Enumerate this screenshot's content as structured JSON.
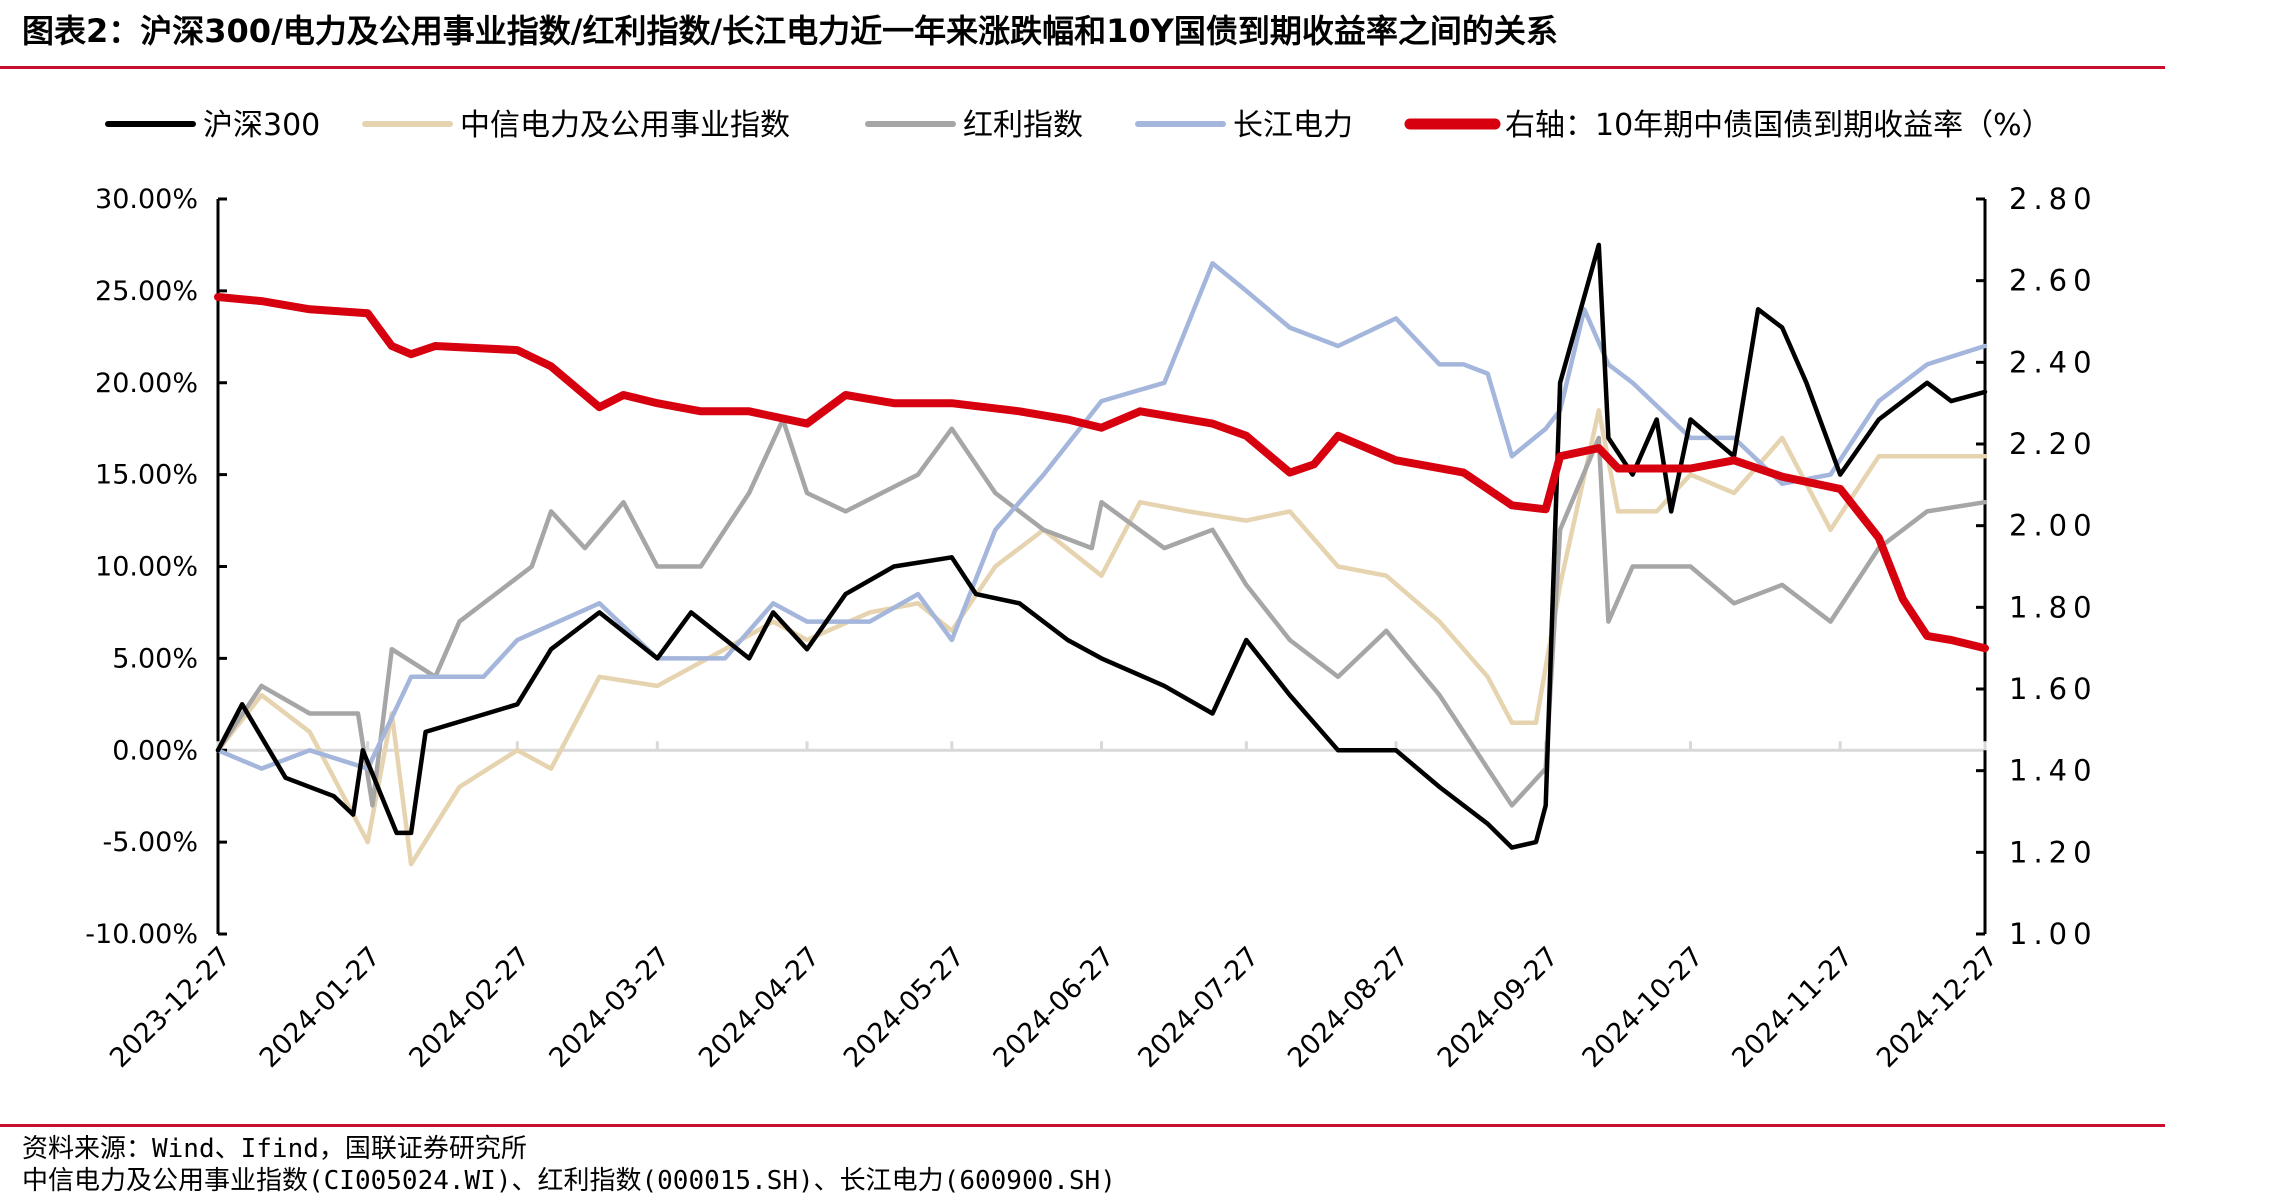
{
  "title": "图表2：沪深300/电力及公用事业指数/红利指数/长江电力近一年来涨跌幅和10Y国债到期收益率之间的关系",
  "source": "资料来源：Wind、Ifind，国联证券研究所",
  "note": "中信电力及公用事业指数(CI005024.WI)、红利指数(000015.SH)、长江电力(600900.SH)",
  "colors": {
    "accent_rule": "#c8102e"
  },
  "chart_data": {
    "type": "line",
    "legend_position": "top",
    "grid": false,
    "x_ticks": [
      "2023-12-27",
      "2024-01-27",
      "2024-02-27",
      "2024-03-27",
      "2024-04-27",
      "2024-05-27",
      "2024-06-27",
      "2024-07-27",
      "2024-08-27",
      "2024-09-27",
      "2024-10-27",
      "2024-11-27",
      "2024-12-27"
    ],
    "x_range": [
      "2023-12-27",
      "2024-12-27"
    ],
    "y_left": {
      "range": [
        -10,
        30
      ],
      "ticks": [
        "-10.00%",
        "-5.00%",
        "0.00%",
        "5.00%",
        "10.00%",
        "15.00%",
        "20.00%",
        "25.00%",
        "30.00%"
      ],
      "tick_values": [
        -10,
        -5,
        0,
        5,
        10,
        15,
        20,
        25,
        30
      ]
    },
    "y_right": {
      "range": [
        1.0,
        2.8
      ],
      "ticks": [
        "1.00",
        "1.20",
        "1.40",
        "1.60",
        "1.80",
        "2.00",
        "2.20",
        "2.40",
        "2.60",
        "2.80"
      ],
      "tick_values": [
        1.0,
        1.2,
        1.4,
        1.6,
        1.8,
        2.0,
        2.2,
        2.4,
        2.6,
        2.8
      ]
    },
    "series": [
      {
        "name": "沪深300",
        "axis": "left",
        "color": "#000000",
        "x": [
          "2023-12-27",
          "2024-01-01",
          "2024-01-10",
          "2024-01-20",
          "2024-01-24",
          "2024-01-26",
          "2024-02-02",
          "2024-02-05",
          "2024-02-08",
          "2024-02-27",
          "2024-03-05",
          "2024-03-15",
          "2024-03-27",
          "2024-04-03",
          "2024-04-15",
          "2024-04-20",
          "2024-04-27",
          "2024-05-05",
          "2024-05-15",
          "2024-05-27",
          "2024-06-01",
          "2024-06-10",
          "2024-06-20",
          "2024-06-27",
          "2024-07-10",
          "2024-07-20",
          "2024-07-27",
          "2024-08-05",
          "2024-08-15",
          "2024-08-27",
          "2024-09-05",
          "2024-09-15",
          "2024-09-20",
          "2024-09-25",
          "2024-09-27",
          "2024-09-30",
          "2024-10-08",
          "2024-10-10",
          "2024-10-15",
          "2024-10-20",
          "2024-10-23",
          "2024-10-27",
          "2024-11-05",
          "2024-11-10",
          "2024-11-15",
          "2024-11-20",
          "2024-11-27",
          "2024-12-05",
          "2024-12-15",
          "2024-12-20",
          "2024-12-27"
        ],
        "values": [
          0,
          2.5,
          -1.5,
          -2.5,
          -3.5,
          0,
          -4.5,
          -4.5,
          1,
          2.5,
          5.5,
          7.5,
          5,
          7.5,
          5,
          7.5,
          5.5,
          8.5,
          10,
          10.5,
          8.5,
          8,
          6,
          5,
          3.5,
          2,
          6,
          3,
          0,
          0,
          -2,
          -4,
          -5.3,
          -5,
          -3,
          20,
          27.5,
          17,
          15,
          18,
          13,
          18,
          16,
          24,
          23,
          20,
          15,
          18,
          20,
          19,
          19.5
        ]
      },
      {
        "name": "中信电力及公用事业指数",
        "axis": "left",
        "color": "#e6d3b0",
        "x": [
          "2023-12-27",
          "2024-01-05",
          "2024-01-15",
          "2024-01-27",
          "2024-02-01",
          "2024-02-05",
          "2024-02-15",
          "2024-02-27",
          "2024-03-05",
          "2024-03-15",
          "2024-03-27",
          "2024-04-10",
          "2024-04-20",
          "2024-04-27",
          "2024-05-10",
          "2024-05-20",
          "2024-05-27",
          "2024-06-05",
          "2024-06-15",
          "2024-06-27",
          "2024-07-05",
          "2024-07-15",
          "2024-07-27",
          "2024-08-05",
          "2024-08-15",
          "2024-08-25",
          "2024-09-05",
          "2024-09-15",
          "2024-09-20",
          "2024-09-25",
          "2024-09-30",
          "2024-10-08",
          "2024-10-12",
          "2024-10-20",
          "2024-10-27",
          "2024-11-05",
          "2024-11-15",
          "2024-11-25",
          "2024-12-05",
          "2024-12-15",
          "2024-12-27"
        ],
        "values": [
          0,
          3,
          1,
          -5,
          2,
          -6.2,
          -2,
          0,
          -1,
          4,
          3.5,
          5.5,
          7,
          6,
          7.5,
          8,
          6.5,
          10,
          12,
          9.5,
          13.5,
          13,
          12.5,
          13,
          10,
          9.5,
          7,
          4,
          1.5,
          1.5,
          9,
          18.5,
          13,
          13,
          15,
          14,
          17,
          12,
          16,
          16,
          16
        ]
      },
      {
        "name": "红利指数",
        "axis": "left",
        "color": "#a6a6a6",
        "x": [
          "2023-12-27",
          "2024-01-05",
          "2024-01-15",
          "2024-01-25",
          "2024-01-28",
          "2024-02-01",
          "2024-02-10",
          "2024-02-15",
          "2024-03-01",
          "2024-03-05",
          "2024-03-12",
          "2024-03-20",
          "2024-03-27",
          "2024-04-05",
          "2024-04-15",
          "2024-04-22",
          "2024-04-27",
          "2024-05-05",
          "2024-05-20",
          "2024-05-27",
          "2024-06-05",
          "2024-06-15",
          "2024-06-25",
          "2024-06-27",
          "2024-07-10",
          "2024-07-20",
          "2024-07-27",
          "2024-08-05",
          "2024-08-15",
          "2024-08-25",
          "2024-09-05",
          "2024-09-15",
          "2024-09-20",
          "2024-09-27",
          "2024-09-30",
          "2024-10-08",
          "2024-10-10",
          "2024-10-15",
          "2024-10-27",
          "2024-11-05",
          "2024-11-15",
          "2024-11-25",
          "2024-12-05",
          "2024-12-15",
          "2024-12-27"
        ],
        "values": [
          0,
          3.5,
          2,
          2,
          -3,
          5.5,
          4,
          7,
          10,
          13,
          11,
          13.5,
          10,
          10,
          14,
          18,
          14,
          13,
          15,
          17.5,
          14,
          12,
          11,
          13.5,
          11,
          12,
          9,
          6,
          4,
          6.5,
          3,
          -1,
          -3,
          -1,
          12,
          17,
          7,
          10,
          10,
          8,
          9,
          7,
          11,
          13,
          13.5
        ]
      },
      {
        "name": "长江电力",
        "axis": "left",
        "color": "#a4b6dc",
        "x": [
          "2023-12-27",
          "2024-01-05",
          "2024-01-15",
          "2024-01-27",
          "2024-02-05",
          "2024-02-20",
          "2024-02-27",
          "2024-03-15",
          "2024-03-27",
          "2024-04-10",
          "2024-04-20",
          "2024-04-27",
          "2024-05-10",
          "2024-05-20",
          "2024-05-27",
          "2024-06-05",
          "2024-06-15",
          "2024-06-27",
          "2024-07-10",
          "2024-07-20",
          "2024-07-27",
          "2024-08-05",
          "2024-08-15",
          "2024-08-27",
          "2024-09-05",
          "2024-09-10",
          "2024-09-15",
          "2024-09-20",
          "2024-09-27",
          "2024-09-30",
          "2024-10-05",
          "2024-10-10",
          "2024-10-15",
          "2024-10-27",
          "2024-11-05",
          "2024-11-15",
          "2024-11-25",
          "2024-12-05",
          "2024-12-15",
          "2024-12-27"
        ],
        "values": [
          0,
          -1,
          0,
          -1,
          4,
          4,
          6,
          8,
          5,
          5,
          8,
          7,
          7,
          8.5,
          6,
          12,
          15,
          19,
          20,
          26.5,
          25,
          23,
          22,
          23.5,
          21,
          21,
          20.5,
          16,
          17.5,
          18.5,
          24,
          21,
          20,
          17,
          17,
          14.5,
          15,
          19,
          21,
          22
        ]
      },
      {
        "name": "右轴：10年期中债国债到期收益率（%）",
        "axis": "right",
        "color": "#d7000f",
        "x": [
          "2023-12-27",
          "2024-01-05",
          "2024-01-15",
          "2024-01-27",
          "2024-02-01",
          "2024-02-05",
          "2024-02-10",
          "2024-02-27",
          "2024-03-05",
          "2024-03-15",
          "2024-03-20",
          "2024-03-27",
          "2024-04-05",
          "2024-04-15",
          "2024-04-27",
          "2024-05-05",
          "2024-05-15",
          "2024-05-27",
          "2024-06-10",
          "2024-06-20",
          "2024-06-27",
          "2024-07-05",
          "2024-07-20",
          "2024-07-27",
          "2024-08-05",
          "2024-08-10",
          "2024-08-15",
          "2024-08-27",
          "2024-09-10",
          "2024-09-20",
          "2024-09-27",
          "2024-09-30",
          "2024-10-08",
          "2024-10-12",
          "2024-10-27",
          "2024-11-05",
          "2024-11-15",
          "2024-11-27",
          "2024-12-05",
          "2024-12-10",
          "2024-12-15",
          "2024-12-20",
          "2024-12-27"
        ],
        "values": [
          2.56,
          2.55,
          2.53,
          2.52,
          2.44,
          2.42,
          2.44,
          2.43,
          2.39,
          2.29,
          2.32,
          2.3,
          2.28,
          2.28,
          2.25,
          2.32,
          2.3,
          2.3,
          2.28,
          2.26,
          2.24,
          2.28,
          2.25,
          2.22,
          2.13,
          2.15,
          2.22,
          2.16,
          2.13,
          2.05,
          2.04,
          2.17,
          2.19,
          2.14,
          2.14,
          2.16,
          2.12,
          2.09,
          1.97,
          1.82,
          1.73,
          1.72,
          1.7
        ]
      }
    ]
  }
}
